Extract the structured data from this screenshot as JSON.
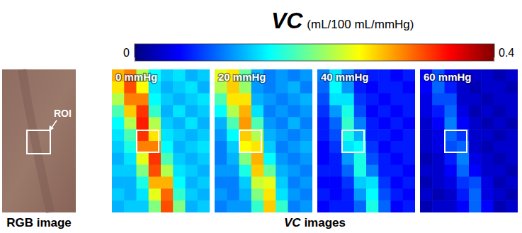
{
  "chart_data": {
    "type": "heatmap",
    "title": "VC",
    "subtitle": "(mL/100 mL/mmHg)",
    "colorbar": {
      "range": [
        0,
        0.4
      ],
      "ticks": [
        0,
        0.4
      ]
    },
    "annotations": [
      "RGB image",
      "ROI",
      "VC images"
    ],
    "panels": [
      {
        "title": "0 mmHg",
        "cells": [
          [
            0.28,
            0.3,
            0.22,
            0.15,
            0.13,
            0.14,
            0.12,
            0.13
          ],
          [
            0.26,
            0.32,
            0.25,
            0.14,
            0.12,
            0.13,
            0.14,
            0.12
          ],
          [
            0.22,
            0.3,
            0.3,
            0.15,
            0.13,
            0.12,
            0.13,
            0.14
          ],
          [
            0.18,
            0.27,
            0.33,
            0.17,
            0.12,
            0.14,
            0.12,
            0.13
          ],
          [
            0.15,
            0.22,
            0.34,
            0.22,
            0.13,
            0.12,
            0.14,
            0.12
          ],
          [
            0.14,
            0.18,
            0.33,
            0.26,
            0.14,
            0.13,
            0.12,
            0.13
          ],
          [
            0.13,
            0.16,
            0.3,
            0.3,
            0.15,
            0.12,
            0.13,
            0.14
          ],
          [
            0.12,
            0.14,
            0.24,
            0.33,
            0.18,
            0.13,
            0.12,
            0.13
          ],
          [
            0.13,
            0.13,
            0.2,
            0.32,
            0.22,
            0.14,
            0.13,
            0.12
          ],
          [
            0.12,
            0.12,
            0.16,
            0.28,
            0.28,
            0.15,
            0.12,
            0.13
          ],
          [
            0.13,
            0.12,
            0.14,
            0.24,
            0.31,
            0.17,
            0.13,
            0.12
          ],
          [
            0.12,
            0.13,
            0.13,
            0.2,
            0.32,
            0.2,
            0.12,
            0.13
          ]
        ]
      },
      {
        "title": "20 mmHg",
        "cells": [
          [
            0.24,
            0.26,
            0.19,
            0.12,
            0.1,
            0.11,
            0.1,
            0.11
          ],
          [
            0.22,
            0.27,
            0.21,
            0.11,
            0.1,
            0.11,
            0.12,
            0.1
          ],
          [
            0.18,
            0.26,
            0.26,
            0.12,
            0.11,
            0.1,
            0.11,
            0.12
          ],
          [
            0.15,
            0.22,
            0.28,
            0.14,
            0.1,
            0.11,
            0.1,
            0.11
          ],
          [
            0.12,
            0.18,
            0.29,
            0.18,
            0.11,
            0.1,
            0.12,
            0.1
          ],
          [
            0.11,
            0.15,
            0.27,
            0.22,
            0.12,
            0.11,
            0.1,
            0.11
          ],
          [
            0.1,
            0.13,
            0.25,
            0.26,
            0.13,
            0.1,
            0.11,
            0.12
          ],
          [
            0.1,
            0.12,
            0.2,
            0.28,
            0.15,
            0.11,
            0.1,
            0.11
          ],
          [
            0.11,
            0.11,
            0.16,
            0.27,
            0.19,
            0.12,
            0.11,
            0.1
          ],
          [
            0.1,
            0.1,
            0.13,
            0.23,
            0.24,
            0.13,
            0.1,
            0.11
          ],
          [
            0.11,
            0.1,
            0.12,
            0.2,
            0.26,
            0.14,
            0.11,
            0.1
          ],
          [
            0.1,
            0.11,
            0.11,
            0.17,
            0.27,
            0.17,
            0.1,
            0.11
          ]
        ]
      },
      {
        "title": "40 mmHg",
        "cells": [
          [
            0.1,
            0.14,
            0.1,
            0.07,
            0.06,
            0.06,
            0.05,
            0.06
          ],
          [
            0.09,
            0.15,
            0.11,
            0.06,
            0.05,
            0.06,
            0.06,
            0.05
          ],
          [
            0.08,
            0.14,
            0.14,
            0.07,
            0.06,
            0.05,
            0.06,
            0.06
          ],
          [
            0.07,
            0.11,
            0.16,
            0.08,
            0.05,
            0.06,
            0.05,
            0.06
          ],
          [
            0.06,
            0.09,
            0.17,
            0.1,
            0.06,
            0.05,
            0.06,
            0.05
          ],
          [
            0.06,
            0.08,
            0.16,
            0.12,
            0.06,
            0.06,
            0.05,
            0.06
          ],
          [
            0.05,
            0.07,
            0.14,
            0.15,
            0.07,
            0.05,
            0.06,
            0.06
          ],
          [
            0.05,
            0.06,
            0.11,
            0.16,
            0.08,
            0.06,
            0.05,
            0.06
          ],
          [
            0.06,
            0.06,
            0.09,
            0.16,
            0.1,
            0.06,
            0.06,
            0.05
          ],
          [
            0.05,
            0.05,
            0.07,
            0.13,
            0.14,
            0.07,
            0.05,
            0.06
          ],
          [
            0.06,
            0.05,
            0.06,
            0.11,
            0.15,
            0.08,
            0.06,
            0.05
          ],
          [
            0.05,
            0.06,
            0.06,
            0.09,
            0.16,
            0.09,
            0.05,
            0.06
          ]
        ]
      },
      {
        "title": "60 mmHg",
        "cells": [
          [
            0.05,
            0.08,
            0.05,
            0.03,
            0.03,
            0.03,
            0.02,
            0.03
          ],
          [
            0.05,
            0.09,
            0.06,
            0.03,
            0.02,
            0.03,
            0.03,
            0.02
          ],
          [
            0.04,
            0.08,
            0.08,
            0.03,
            0.03,
            0.02,
            0.03,
            0.03
          ],
          [
            0.04,
            0.06,
            0.09,
            0.04,
            0.02,
            0.03,
            0.02,
            0.03
          ],
          [
            0.03,
            0.05,
            0.1,
            0.05,
            0.03,
            0.02,
            0.03,
            0.02
          ],
          [
            0.03,
            0.04,
            0.09,
            0.07,
            0.03,
            0.03,
            0.02,
            0.03
          ],
          [
            0.03,
            0.04,
            0.08,
            0.09,
            0.03,
            0.02,
            0.03,
            0.03
          ],
          [
            0.02,
            0.03,
            0.06,
            0.1,
            0.04,
            0.03,
            0.02,
            0.03
          ],
          [
            0.03,
            0.03,
            0.05,
            0.09,
            0.05,
            0.03,
            0.03,
            0.02
          ],
          [
            0.02,
            0.03,
            0.04,
            0.07,
            0.08,
            0.04,
            0.02,
            0.03
          ],
          [
            0.03,
            0.02,
            0.03,
            0.06,
            0.09,
            0.04,
            0.03,
            0.02
          ],
          [
            0.02,
            0.03,
            0.03,
            0.05,
            0.09,
            0.05,
            0.02,
            0.03
          ]
        ]
      }
    ]
  }
}
